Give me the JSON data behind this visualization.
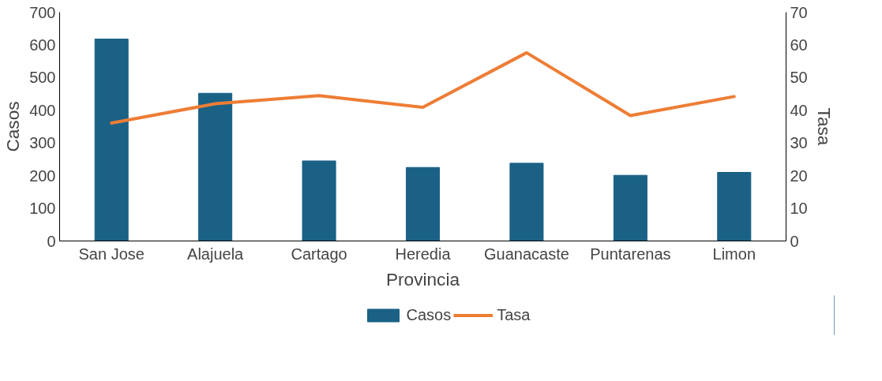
{
  "chart_data": {
    "type": "bar",
    "xlabel": "Provincia",
    "ylabel": "Casos",
    "y2label": "Tasa",
    "categories": [
      "San Jose",
      "Alajuela",
      "Cartago",
      "Heredia",
      "Guanacaste",
      "Puntarenas",
      "Limon"
    ],
    "series": [
      {
        "name": "Casos",
        "color": "#1a6185",
        "values": [
          618,
          452,
          245,
          225,
          238,
          201,
          210
        ]
      },
      {
        "name": "Tasa",
        "type": "line",
        "axis": "y2",
        "color": "#ee7d35",
        "values": [
          36.1,
          42.0,
          44.5,
          40.9,
          57.6,
          38.4,
          44.2
        ]
      }
    ],
    "ylim": [
      0,
      700
    ],
    "yticks": [
      0,
      100,
      200,
      300,
      400,
      500,
      600,
      700
    ],
    "y2lim": [
      0,
      70
    ],
    "y2ticks": [
      0,
      10,
      20,
      30,
      40,
      50,
      60,
      70
    ],
    "grid": false,
    "legend": "bottom",
    "marker": "none",
    "line_style": "solid"
  }
}
